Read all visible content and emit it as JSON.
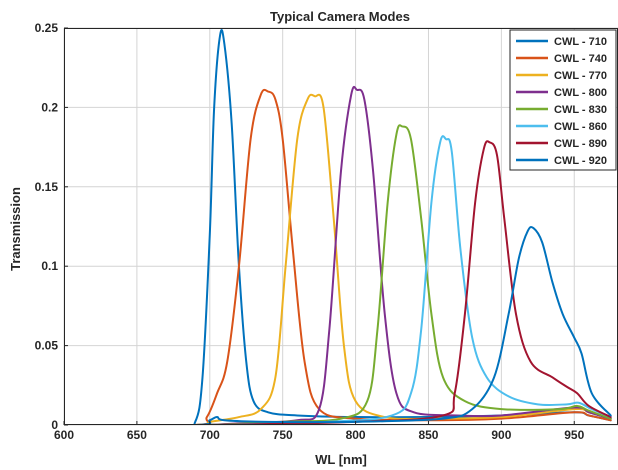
{
  "chart_data": {
    "type": "line",
    "title": "Typical Camera Modes",
    "xlabel": "WL [nm]",
    "ylabel": "Transmission",
    "xlim": [
      600,
      980
    ],
    "ylim": [
      0,
      0.25
    ],
    "xticks": [
      "600",
      "650",
      "700",
      "750",
      "800",
      "850",
      "900",
      "950"
    ],
    "yticks": [
      "0",
      "0.05",
      "0.1",
      "0.15",
      "0.2",
      "0.25"
    ],
    "grid": true,
    "legend_position": "top-right",
    "series": [
      {
        "name": "CWL - 710",
        "color": "#0072BD",
        "points": [
          [
            600,
            0
          ],
          [
            680,
            0
          ],
          [
            690,
            0.002
          ],
          [
            695,
            0.03
          ],
          [
            700,
            0.12
          ],
          [
            703,
            0.2
          ],
          [
            707,
            0.245
          ],
          [
            710,
            0.24
          ],
          [
            715,
            0.19
          ],
          [
            720,
            0.1
          ],
          [
            725,
            0.04
          ],
          [
            730,
            0.015
          ],
          [
            740,
            0.008
          ],
          [
            760,
            0.006
          ],
          [
            800,
            0.005
          ],
          [
            850,
            0.005
          ],
          [
            900,
            0.006
          ],
          [
            950,
            0.008
          ],
          [
            960,
            0.006
          ],
          [
            975,
            0.003
          ]
        ]
      },
      {
        "name": "CWL - 740",
        "color": "#D95319",
        "points": [
          [
            600,
            0
          ],
          [
            690,
            0
          ],
          [
            698,
            0.005
          ],
          [
            705,
            0.02
          ],
          [
            712,
            0.04
          ],
          [
            720,
            0.1
          ],
          [
            728,
            0.18
          ],
          [
            735,
            0.208
          ],
          [
            740,
            0.21
          ],
          [
            745,
            0.205
          ],
          [
            750,
            0.18
          ],
          [
            757,
            0.11
          ],
          [
            765,
            0.04
          ],
          [
            775,
            0.01
          ],
          [
            800,
            0.004
          ],
          [
            850,
            0.003
          ],
          [
            900,
            0.004
          ],
          [
            950,
            0.008
          ],
          [
            960,
            0.006
          ],
          [
            975,
            0.003
          ]
        ]
      },
      {
        "name": "CWL - 770",
        "color": "#EDB120",
        "points": [
          [
            600,
            0
          ],
          [
            690,
            0
          ],
          [
            700,
            0.002
          ],
          [
            720,
            0.005
          ],
          [
            735,
            0.01
          ],
          [
            745,
            0.03
          ],
          [
            752,
            0.1
          ],
          [
            760,
            0.18
          ],
          [
            767,
            0.205
          ],
          [
            772,
            0.207
          ],
          [
            778,
            0.2
          ],
          [
            785,
            0.13
          ],
          [
            792,
            0.05
          ],
          [
            800,
            0.015
          ],
          [
            820,
            0.005
          ],
          [
            850,
            0.004
          ],
          [
            900,
            0.005
          ],
          [
            950,
            0.01
          ],
          [
            960,
            0.008
          ],
          [
            975,
            0.004
          ]
        ]
      },
      {
        "name": "CWL - 800",
        "color": "#7E2F8E",
        "points": [
          [
            600,
            0
          ],
          [
            690,
            0
          ],
          [
            720,
            0.001
          ],
          [
            760,
            0.003
          ],
          [
            775,
            0.01
          ],
          [
            782,
            0.06
          ],
          [
            790,
            0.16
          ],
          [
            797,
            0.208
          ],
          [
            801,
            0.211
          ],
          [
            806,
            0.205
          ],
          [
            812,
            0.16
          ],
          [
            820,
            0.07
          ],
          [
            828,
            0.02
          ],
          [
            840,
            0.008
          ],
          [
            870,
            0.006
          ],
          [
            900,
            0.006
          ],
          [
            950,
            0.011
          ],
          [
            960,
            0.008
          ],
          [
            975,
            0.004
          ]
        ]
      },
      {
        "name": "CWL - 830",
        "color": "#77AC30",
        "points": [
          [
            600,
            0
          ],
          [
            690,
            0
          ],
          [
            750,
            0.002
          ],
          [
            790,
            0.004
          ],
          [
            808,
            0.015
          ],
          [
            815,
            0.06
          ],
          [
            822,
            0.14
          ],
          [
            828,
            0.183
          ],
          [
            832,
            0.188
          ],
          [
            838,
            0.18
          ],
          [
            845,
            0.13
          ],
          [
            852,
            0.07
          ],
          [
            860,
            0.03
          ],
          [
            875,
            0.015
          ],
          [
            900,
            0.01
          ],
          [
            940,
            0.01
          ],
          [
            952,
            0.012
          ],
          [
            960,
            0.009
          ],
          [
            975,
            0.004
          ]
        ]
      },
      {
        "name": "CWL - 860",
        "color": "#4DBEEE",
        "points": [
          [
            600,
            0
          ],
          [
            690,
            0
          ],
          [
            780,
            0.002
          ],
          [
            825,
            0.006
          ],
          [
            838,
            0.02
          ],
          [
            845,
            0.06
          ],
          [
            852,
            0.14
          ],
          [
            858,
            0.178
          ],
          [
            862,
            0.18
          ],
          [
            866,
            0.172
          ],
          [
            872,
            0.11
          ],
          [
            880,
            0.055
          ],
          [
            890,
            0.03
          ],
          [
            905,
            0.018
          ],
          [
            925,
            0.013
          ],
          [
            945,
            0.013
          ],
          [
            953,
            0.014
          ],
          [
            962,
            0.01
          ],
          [
            975,
            0.005
          ]
        ]
      },
      {
        "name": "CWL - 890",
        "color": "#A2142F",
        "points": [
          [
            600,
            0
          ],
          [
            690,
            0
          ],
          [
            800,
            0.002
          ],
          [
            860,
            0.006
          ],
          [
            868,
            0.02
          ],
          [
            875,
            0.07
          ],
          [
            882,
            0.14
          ],
          [
            888,
            0.174
          ],
          [
            892,
            0.178
          ],
          [
            897,
            0.17
          ],
          [
            902,
            0.13
          ],
          [
            910,
            0.07
          ],
          [
            920,
            0.04
          ],
          [
            935,
            0.03
          ],
          [
            945,
            0.024
          ],
          [
            952,
            0.02
          ],
          [
            960,
            0.012
          ],
          [
            975,
            0.005
          ]
        ]
      },
      {
        "name": "CWL - 920",
        "color": "#0072BD",
        "points": [
          [
            600,
            0
          ],
          [
            690,
            0
          ],
          [
            700,
            0.003
          ],
          [
            705,
            0.005
          ],
          [
            710,
            0.003
          ],
          [
            740,
            0.002
          ],
          [
            800,
            0.002
          ],
          [
            860,
            0.004
          ],
          [
            880,
            0.01
          ],
          [
            895,
            0.03
          ],
          [
            905,
            0.07
          ],
          [
            912,
            0.105
          ],
          [
            918,
            0.122
          ],
          [
            922,
            0.124
          ],
          [
            928,
            0.115
          ],
          [
            935,
            0.09
          ],
          [
            942,
            0.07
          ],
          [
            950,
            0.055
          ],
          [
            955,
            0.045
          ],
          [
            962,
            0.02
          ],
          [
            975,
            0.006
          ]
        ]
      }
    ]
  }
}
